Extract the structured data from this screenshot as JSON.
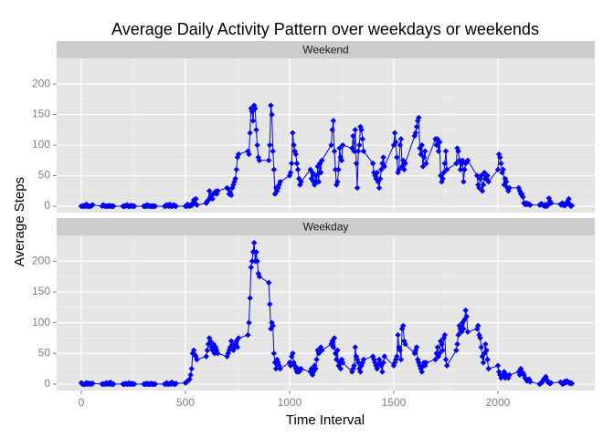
{
  "chart_data": {
    "type": "line",
    "facet": true,
    "grid": true,
    "title": "Average Daily Activity Pattern over weekdays or weekends",
    "x_label": "Time Interval",
    "y_label": "Average Steps",
    "xlim": [
      -118,
      2465
    ],
    "xticks": [
      0,
      500,
      1000,
      1500,
      2000
    ],
    "ylim": [
      -10.5,
      242
    ],
    "yticks": [
      0,
      50,
      100,
      150,
      200
    ],
    "x": [
      0,
      5,
      10,
      15,
      20,
      25,
      30,
      35,
      40,
      45,
      50,
      55,
      100,
      105,
      110,
      115,
      120,
      125,
      130,
      135,
      140,
      145,
      150,
      155,
      200,
      205,
      210,
      215,
      220,
      225,
      230,
      235,
      240,
      245,
      250,
      255,
      300,
      305,
      310,
      315,
      320,
      325,
      330,
      335,
      340,
      345,
      350,
      355,
      400,
      405,
      410,
      415,
      420,
      425,
      430,
      435,
      440,
      445,
      450,
      455,
      500,
      505,
      510,
      515,
      520,
      525,
      530,
      535,
      540,
      545,
      550,
      555,
      600,
      605,
      610,
      615,
      620,
      625,
      630,
      635,
      640,
      645,
      650,
      655,
      700,
      705,
      710,
      715,
      720,
      725,
      730,
      735,
      740,
      745,
      750,
      755,
      800,
      805,
      810,
      815,
      820,
      825,
      830,
      835,
      840,
      845,
      850,
      855,
      900,
      905,
      910,
      915,
      920,
      925,
      930,
      935,
      940,
      945,
      950,
      955,
      1000,
      1005,
      1010,
      1015,
      1020,
      1025,
      1030,
      1035,
      1040,
      1045,
      1050,
      1055,
      1100,
      1105,
      1110,
      1115,
      1120,
      1125,
      1130,
      1135,
      1140,
      1145,
      1150,
      1155,
      1200,
      1205,
      1210,
      1215,
      1220,
      1225,
      1230,
      1235,
      1240,
      1245,
      1250,
      1255,
      1300,
      1305,
      1310,
      1315,
      1320,
      1325,
      1330,
      1335,
      1340,
      1345,
      1350,
      1355,
      1400,
      1405,
      1410,
      1415,
      1420,
      1425,
      1430,
      1435,
      1440,
      1445,
      1450,
      1455,
      1500,
      1505,
      1510,
      1515,
      1520,
      1525,
      1530,
      1535,
      1540,
      1545,
      1550,
      1555,
      1600,
      1605,
      1610,
      1615,
      1620,
      1625,
      1630,
      1635,
      1640,
      1645,
      1650,
      1655,
      1700,
      1705,
      1710,
      1715,
      1720,
      1725,
      1730,
      1735,
      1740,
      1745,
      1750,
      1755,
      1800,
      1805,
      1810,
      1815,
      1820,
      1825,
      1830,
      1835,
      1840,
      1845,
      1850,
      1855,
      1900,
      1905,
      1910,
      1915,
      1920,
      1925,
      1930,
      1935,
      1940,
      1945,
      1950,
      1955,
      2000,
      2005,
      2010,
      2015,
      2020,
      2025,
      2030,
      2035,
      2040,
      2045,
      2050,
      2055,
      2100,
      2105,
      2110,
      2115,
      2120,
      2125,
      2130,
      2135,
      2140,
      2145,
      2150,
      2155,
      2200,
      2205,
      2210,
      2215,
      2220,
      2225,
      2230,
      2235,
      2240,
      2245,
      2250,
      2255,
      2300,
      2305,
      2310,
      2315,
      2320,
      2325,
      2330,
      2335,
      2340,
      2345,
      2350,
      2355
    ],
    "series": [
      {
        "name": "Weekend",
        "color": "#0000ff",
        "values": [
          0,
          0,
          0,
          1,
          0,
          3,
          0,
          0,
          0,
          0,
          1,
          2,
          0,
          2,
          1,
          0,
          0,
          0,
          0,
          1,
          0,
          0,
          0,
          0,
          0,
          0,
          0,
          1,
          2,
          0,
          0,
          0,
          1,
          0,
          0,
          0,
          0,
          0,
          0,
          2,
          0,
          1,
          0,
          0,
          0,
          0,
          0,
          0,
          0,
          0,
          2,
          1,
          0,
          3,
          0,
          0,
          1,
          2,
          0,
          0,
          0,
          0,
          3,
          1,
          0,
          2,
          1,
          5,
          10,
          5,
          12,
          2,
          5,
          8,
          10,
          25,
          15,
          18,
          12,
          20,
          22,
          24,
          20,
          25,
          30,
          28,
          20,
          22,
          18,
          30,
          35,
          40,
          45,
          60,
          80,
          85,
          90,
          85,
          120,
          160,
          155,
          140,
          165,
          160,
          125,
          100,
          80,
          75,
          75,
          100,
          165,
          150,
          90,
          60,
          20,
          30,
          25,
          30,
          35,
          40,
          50,
          55,
          70,
          120,
          100,
          90,
          85,
          70,
          60,
          45,
          35,
          40,
          60,
          45,
          55,
          40,
          35,
          50,
          40,
          65,
          40,
          70,
          55,
          75,
          100,
          125,
          140,
          90,
          60,
          35,
          40,
          60,
          95,
          80,
          75,
          100,
          95,
          115,
          90,
          125,
          70,
          30,
          90,
          100,
          130,
          125,
          110,
          90,
          70,
          55,
          50,
          45,
          55,
          40,
          30,
          45,
          60,
          70,
          80,
          65,
          100,
          120,
          105,
          80,
          55,
          60,
          100,
          110,
          65,
          75,
          60,
          70,
          115,
          120,
          130,
          140,
          145,
          95,
          85,
          100,
          65,
          80,
          90,
          70,
          110,
          100,
          110,
          90,
          105,
          50,
          40,
          45,
          55,
          70,
          90,
          60,
          70,
          95,
          90,
          75,
          60,
          70,
          75,
          40,
          60,
          70,
          72,
          75,
          50,
          35,
          30,
          45,
          50,
          25,
          35,
          55,
          45,
          45,
          50,
          40,
          60,
          85,
          80,
          70,
          55,
          60,
          35,
          45,
          40,
          30,
          25,
          30,
          30,
          25,
          20,
          20,
          15,
          5,
          3,
          5,
          3,
          4,
          3,
          2,
          2,
          3,
          4,
          2,
          1,
          0,
          3,
          0,
          2,
          13,
          8,
          5,
          3,
          2,
          5,
          2,
          1,
          2,
          5,
          8,
          12,
          3,
          0,
          1
        ]
      },
      {
        "name": "Weekday",
        "color": "#0000ff",
        "values": [
          2,
          0,
          0,
          0,
          0,
          2,
          0,
          1,
          0,
          1,
          0,
          1,
          0,
          0,
          0,
          0,
          2,
          0,
          1,
          0,
          3,
          0,
          0,
          0,
          0,
          0,
          0,
          1,
          0,
          0,
          2,
          0,
          0,
          1,
          0,
          0,
          0,
          0,
          0,
          1,
          0,
          0,
          0,
          1,
          0,
          0,
          0,
          0,
          0,
          0,
          2,
          0,
          0,
          1,
          0,
          3,
          1,
          0,
          0,
          1,
          2,
          3,
          5,
          6,
          8,
          15,
          25,
          50,
          55,
          48,
          45,
          40,
          45,
          55,
          65,
          75,
          70,
          60,
          55,
          65,
          50,
          60,
          55,
          50,
          45,
          50,
          55,
          60,
          70,
          65,
          55,
          60,
          65,
          70,
          60,
          75,
          80,
          100,
          140,
          190,
          200,
          215,
          230,
          200,
          215,
          200,
          180,
          175,
          165,
          130,
          90,
          100,
          95,
          50,
          35,
          25,
          40,
          35,
          30,
          25,
          35,
          30,
          45,
          50,
          35,
          30,
          25,
          20,
          25,
          20,
          22,
          25,
          20,
          25,
          15,
          20,
          30,
          25,
          40,
          55,
          50,
          55,
          60,
          55,
          65,
          70,
          60,
          75,
          50,
          40,
          55,
          30,
          35,
          25,
          40,
          35,
          20,
          25,
          30,
          60,
          45,
          40,
          35,
          25,
          20,
          30,
          35,
          40,
          45,
          40,
          35,
          30,
          25,
          30,
          40,
          35,
          30,
          20,
          35,
          45,
          30,
          35,
          40,
          45,
          80,
          60,
          55,
          40,
          90,
          95,
          70,
          65,
          50,
          55,
          60,
          40,
          35,
          30,
          25,
          20,
          30,
          35,
          30,
          35,
          40,
          50,
          60,
          45,
          50,
          70,
          65,
          55,
          75,
          80,
          40,
          30,
          55,
          65,
          80,
          95,
          90,
          85,
          100,
          90,
          105,
          120,
          110,
          85,
          90,
          95,
          80,
          75,
          60,
          45,
          35,
          50,
          65,
          55,
          40,
          25,
          30,
          20,
          15,
          10,
          12,
          15,
          20,
          10,
          15,
          12,
          10,
          15,
          20,
          15,
          25,
          20,
          18,
          15,
          10,
          8,
          5,
          7,
          8,
          4,
          0,
          1,
          2,
          5,
          8,
          10,
          12,
          7,
          3,
          2,
          1,
          2,
          3,
          2,
          0,
          1,
          4,
          2,
          5,
          4,
          3,
          1,
          2,
          1
        ]
      }
    ]
  }
}
